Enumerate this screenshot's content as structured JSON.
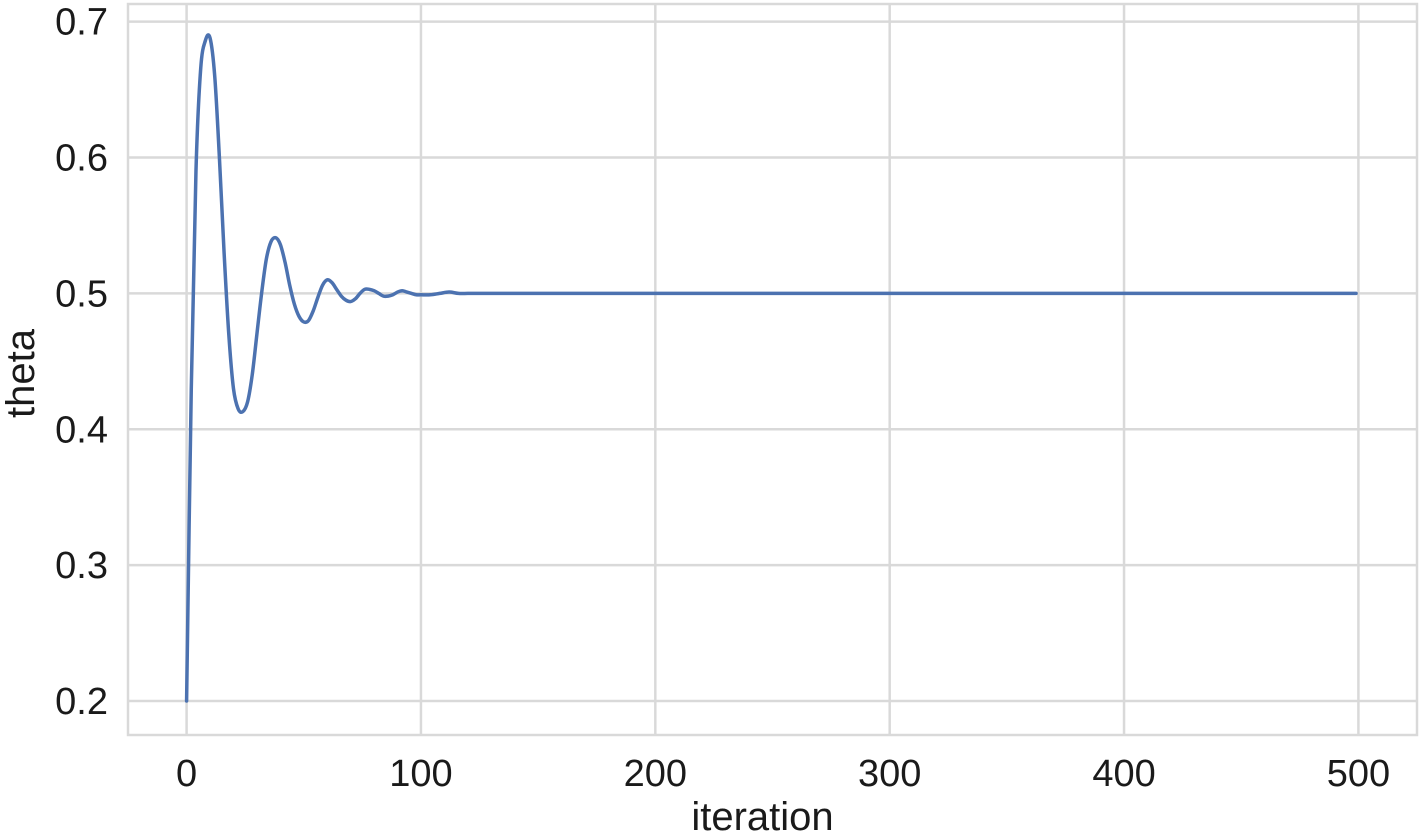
{
  "chart_data": {
    "type": "line",
    "title": "",
    "xlabel": "iteration",
    "ylabel": "theta",
    "xlim": [
      -25,
      525
    ],
    "ylim": [
      0.175,
      0.713
    ],
    "grid": true,
    "x_ticks": [
      0,
      100,
      200,
      300,
      400,
      500
    ],
    "x_tick_labels": [
      "0",
      "100",
      "200",
      "300",
      "400",
      "500"
    ],
    "y_ticks": [
      0.2,
      0.3,
      0.4,
      0.5,
      0.6,
      0.7
    ],
    "y_tick_labels": [
      "0.2",
      "0.3",
      "0.4",
      "0.5",
      "0.6",
      "0.7"
    ],
    "series": [
      {
        "color": "#4c72b0",
        "x": [
          0,
          2,
          4,
          6,
          8,
          10,
          12,
          14,
          16,
          18,
          20,
          22,
          24,
          26,
          28,
          30,
          32,
          34,
          36,
          38,
          40,
          42,
          44,
          46,
          48,
          50,
          52,
          54,
          56,
          58,
          60,
          62,
          64,
          66,
          68,
          70,
          72,
          74,
          76,
          78,
          80,
          82,
          84,
          86,
          88,
          90,
          92,
          94,
          96,
          98,
          100,
          104,
          108,
          112,
          116,
          120,
          124,
          128,
          132,
          136,
          140,
          150,
          200,
          300,
          400,
          499
        ],
        "y": [
          0.2,
          0.43,
          0.59,
          0.665,
          0.686,
          0.688,
          0.66,
          0.6,
          0.53,
          0.47,
          0.43,
          0.415,
          0.413,
          0.42,
          0.44,
          0.47,
          0.5,
          0.525,
          0.538,
          0.541,
          0.536,
          0.523,
          0.506,
          0.492,
          0.483,
          0.479,
          0.48,
          0.487,
          0.497,
          0.506,
          0.51,
          0.508,
          0.503,
          0.498,
          0.495,
          0.494,
          0.496,
          0.5,
          0.503,
          0.503,
          0.502,
          0.5,
          0.498,
          0.498,
          0.499,
          0.501,
          0.502,
          0.501,
          0.5,
          0.499,
          0.499,
          0.499,
          0.5,
          0.501,
          0.5,
          0.5,
          0.5,
          0.5,
          0.5,
          0.5,
          0.5,
          0.5,
          0.5,
          0.5,
          0.5,
          0.5
        ]
      }
    ]
  }
}
